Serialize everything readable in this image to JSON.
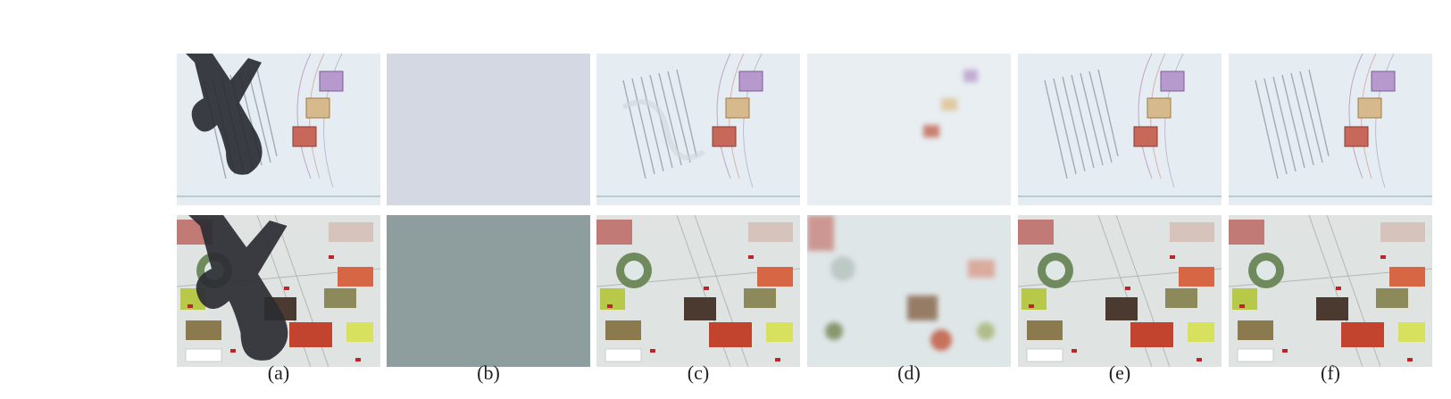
{
  "figure": {
    "subfigure_labels": [
      "(a)",
      "(b)",
      "(c)",
      "(d)",
      "(e)",
      "(f)"
    ],
    "rows": [
      "document-page",
      "menu-page"
    ],
    "panel_colors": {
      "blank_top": "#d3d8e2",
      "blank_bottom": "#8e9d9e",
      "paper_top": "#e6edf2",
      "paper_bottom": "#dfe3e1"
    }
  }
}
